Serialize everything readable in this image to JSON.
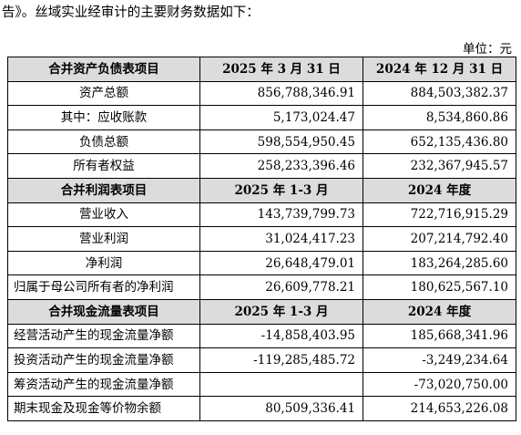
{
  "intro_text": "告》。丝域实业经审计的主要财务数据如下：",
  "unit_label": "单位：元",
  "table": {
    "sections": [
      {
        "header": [
          "合并资产负债表项目",
          "2025 年 3 月 31 日",
          "2024 年 12 月 31 日"
        ],
        "rows": [
          [
            "资产总额",
            "856,788,346.91",
            "884,503,382.37"
          ],
          [
            "其中：应收账款",
            "5,173,024.47",
            "8,534,860.86"
          ],
          [
            "负债总额",
            "598,554,950.45",
            "652,135,436.80"
          ],
          [
            "所有者权益",
            "258,233,396.46",
            "232,367,945.57"
          ]
        ]
      },
      {
        "header": [
          "合并利润表项目",
          "2025 年 1-3 月",
          "2024 年度"
        ],
        "rows": [
          [
            "营业收入",
            "143,739,799.73",
            "722,716,915.29"
          ],
          [
            "营业利润",
            "31,024,417.23",
            "207,214,792.40"
          ],
          [
            "净利润",
            "26,648,479.01",
            "183,264,285.60"
          ],
          [
            "归属于母公司所有者的净利润",
            "26,609,778.21",
            "180,625,567.10"
          ]
        ]
      },
      {
        "header": [
          "合并现金流量表项目",
          "2025 年 1-3 月",
          "2024 年度"
        ],
        "rows": [
          [
            "经营活动产生的现金流量净额",
            "-14,858,403.95",
            "185,668,341.96"
          ],
          [
            "投资活动产生的现金流量净额",
            "-119,285,485.72",
            "-3,249,234.64"
          ],
          [
            "筹资活动产生的现金流量净额",
            "",
            "-73,020,750.00"
          ],
          [
            "期末现金及现金等价物余额",
            "80,509,336.41",
            "214,653,226.08"
          ]
        ]
      }
    ]
  }
}
